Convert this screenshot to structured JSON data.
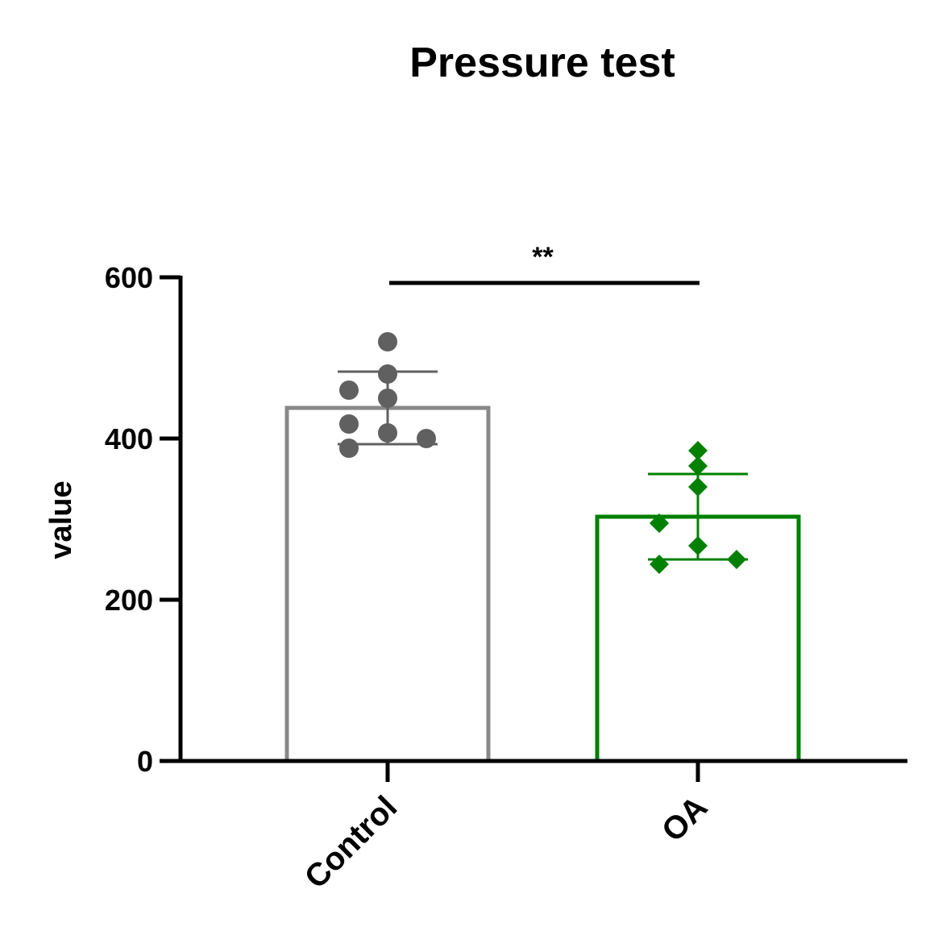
{
  "chart_data": {
    "type": "bar",
    "title": "Pressure test",
    "xlabel": "",
    "ylabel": "value",
    "ylim": [
      0,
      600
    ],
    "yticks": [
      0,
      200,
      400,
      600
    ],
    "categories": [
      "Control",
      "OA"
    ],
    "bars": [
      {
        "category": "Control",
        "mean": 438,
        "sd": 45,
        "color": "#888888",
        "point_color": "#606060",
        "marker": "circle",
        "points": [
          520,
          480,
          450,
          460,
          418,
          407,
          400,
          388
        ]
      },
      {
        "category": "OA",
        "mean": 303,
        "sd": 53,
        "color": "#008000",
        "point_color": "#008000",
        "marker": "diamond",
        "points": [
          385,
          366,
          340,
          295,
          295,
          267,
          250,
          244
        ]
      }
    ],
    "significance": {
      "between": [
        "Control",
        "OA"
      ],
      "label": "**"
    },
    "grid": false,
    "legend": "none"
  }
}
